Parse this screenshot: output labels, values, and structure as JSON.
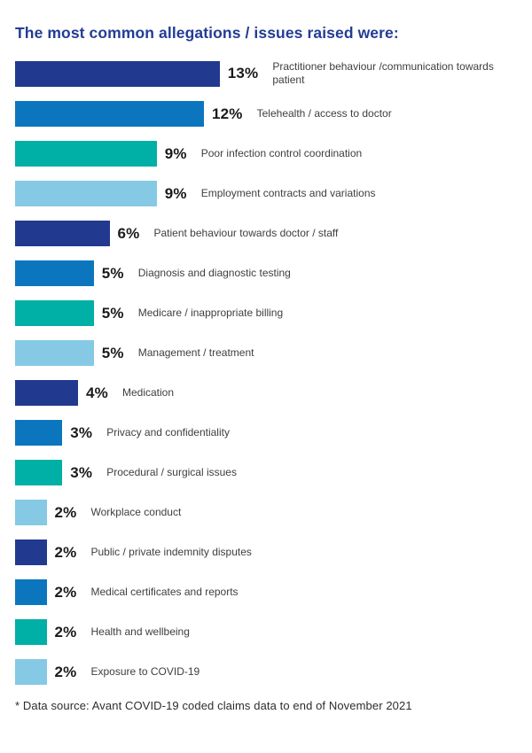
{
  "page": {
    "title": "The most common allegations / issues raised were:",
    "footnote": "* Data source: Avant COVID-19 coded claims data to end of November 2021"
  },
  "theme": {
    "background": "#FFFFFF",
    "title_color": "#233D94",
    "percent_label_color": "#1B1B1B",
    "category_label_color": "#3E3E3E",
    "palette": [
      "#21398F",
      "#0B76BE",
      "#00AFA5",
      "#85C9E5"
    ]
  },
  "chart_data": {
    "type": "bar",
    "orientation": "horizontal",
    "unit": "%",
    "xlim": [
      0,
      13
    ],
    "grid": false,
    "legend": false,
    "title": "The most common allegations / issues raised were:",
    "categories": [
      "Practitioner behaviour /communication towards patient",
      "Telehealth / access to doctor",
      "Poor infection control coordination",
      "Employment contracts and variations",
      "Patient behaviour towards doctor / staff",
      "Diagnosis and diagnostic testing",
      "Medicare / inappropriate billing",
      "Management / treatment",
      "Medication",
      "Privacy and confidentiality",
      "Procedural / surgical issues",
      "Workplace conduct",
      "Public / private indemnity disputes",
      "Medical certificates and reports",
      "Health and wellbeing",
      "Exposure to COVID-19"
    ],
    "values": [
      13,
      12,
      9,
      9,
      6,
      5,
      5,
      5,
      4,
      3,
      3,
      2,
      2,
      2,
      2,
      2
    ],
    "value_labels": [
      "13%",
      "12%",
      "9%",
      "9%",
      "6%",
      "5%",
      "5%",
      "5%",
      "4%",
      "3%",
      "3%",
      "2%",
      "2%",
      "2%",
      "2%",
      "2%"
    ],
    "bar_colors": [
      "#21398F",
      "#0B76BE",
      "#00AFA5",
      "#85C9E5",
      "#21398F",
      "#0B76BE",
      "#00AFA5",
      "#85C9E5",
      "#21398F",
      "#0B76BE",
      "#00AFA5",
      "#85C9E5",
      "#21398F",
      "#0B76BE",
      "#00AFA5",
      "#85C9E5"
    ]
  }
}
